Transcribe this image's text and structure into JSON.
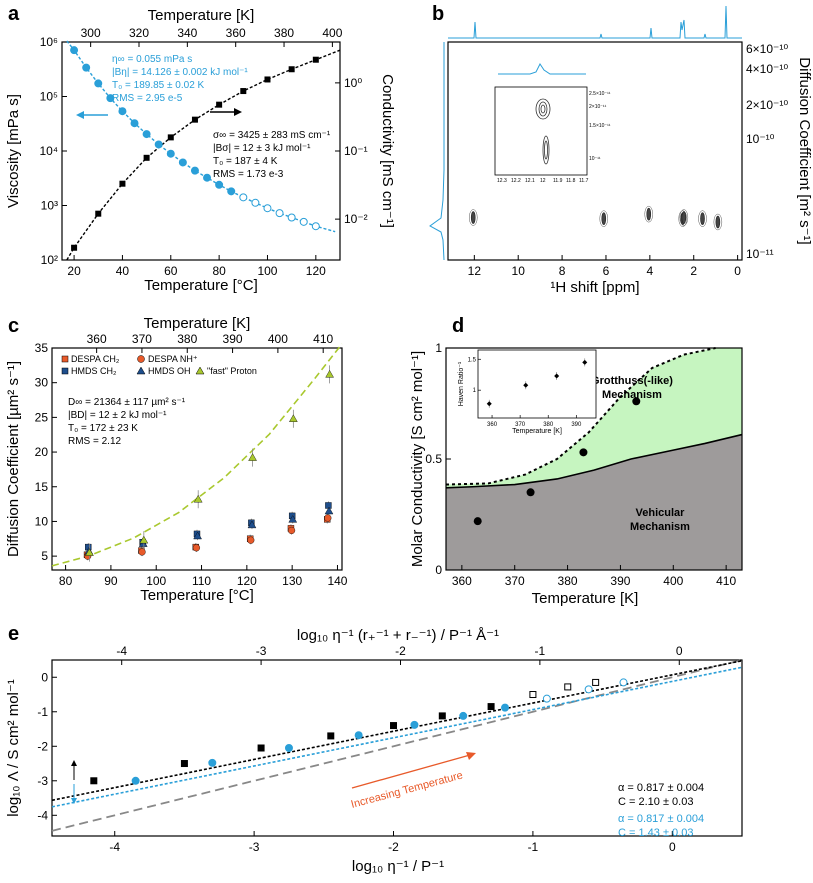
{
  "figure": {
    "labels": [
      "a",
      "b",
      "c",
      "d",
      "e"
    ]
  },
  "colors": {
    "blue": "#2a9fd8",
    "black": "#111111",
    "green_fill": "#c6f5c0",
    "gray_fill": "#9e9b9b",
    "orange": "#e85a2a",
    "navy": "#1e4e8c",
    "lime": "#a9c82e",
    "dash_gray": "#888888"
  },
  "chart_data": [
    {
      "id": "a",
      "type": "line",
      "xlabel": "Temperature [°C]",
      "x2label": "Temperature [K]",
      "ylabel": "Viscosity [mPa s]",
      "y2label": "Conductivity [mS cm⁻¹]",
      "xlim": [
        15,
        130
      ],
      "xticks": [
        20,
        40,
        60,
        80,
        100,
        120
      ],
      "x2ticks": [
        300,
        320,
        340,
        360,
        380,
        400
      ],
      "ylim_log": [
        2,
        6
      ],
      "yticks_text": [
        "10²",
        "10³",
        "10⁴",
        "10⁵",
        "10⁶"
      ],
      "y2lim_log": [
        -2.6,
        0.6
      ],
      "y2ticks_text": [
        "10⁻²",
        "10⁻¹",
        "10⁰"
      ],
      "viscosity": {
        "x": [
          20,
          25,
          30,
          35,
          40,
          45,
          50,
          55,
          60,
          65,
          70,
          75,
          80,
          85,
          90,
          95,
          100,
          105,
          110,
          115,
          120
        ],
        "log_y": [
          5.85,
          5.53,
          5.24,
          4.97,
          4.73,
          4.51,
          4.31,
          4.12,
          3.95,
          3.79,
          3.64,
          3.51,
          3.38,
          3.26,
          3.15,
          3.05,
          2.95,
          2.86,
          2.78,
          2.7,
          2.62
        ],
        "open_from": 90
      },
      "conductivity": {
        "x": [
          20,
          30,
          40,
          50,
          60,
          70,
          80,
          90,
          100,
          110,
          120
        ],
        "log_y": [
          -2.42,
          -1.92,
          -1.48,
          -1.1,
          -0.8,
          -0.54,
          -0.32,
          -0.12,
          0.05,
          0.2,
          0.34
        ]
      },
      "annot_blue": [
        "η∞ = 0.055 mPa s",
        "|Bη| = 14.126 ± 0.002 kJ mol⁻¹",
        "T₀ = 189.85 ± 0.02 K",
        "RMS = 2.95 e-5"
      ],
      "annot_black": [
        "σ∞ = 3425 ± 283 mS cm⁻¹",
        "|Bσ| = 12 ± 3 kJ mol⁻¹",
        "T₀ = 187 ± 4 K",
        "RMS = 1.73 e-3"
      ]
    },
    {
      "id": "b",
      "type": "scatter",
      "xlabel": "¹H shift [ppm]",
      "ylabel": "Diffusion Coefficient [m² s⁻¹]",
      "xlim": [
        13.2,
        -0.2
      ],
      "xticks": [
        12,
        10,
        8,
        6,
        4,
        2,
        0
      ],
      "yticks_text": [
        "6×10⁻¹⁰",
        "4×10⁻¹⁰",
        "2×10⁻¹⁰",
        "10⁻¹⁰",
        "10⁻¹¹"
      ],
      "ylog_range": [
        -11.15,
        -9.2
      ],
      "peaks": [
        {
          "ppm": 12.05,
          "log_d": -10.77
        },
        {
          "ppm": 6.1,
          "log_d": -10.78
        },
        {
          "ppm": 4.05,
          "log_d": -10.74
        },
        {
          "ppm": 2.5,
          "log_d": -10.78
        },
        {
          "ppm": 2.45,
          "log_d": -10.77
        },
        {
          "ppm": 1.6,
          "log_d": -10.78
        },
        {
          "ppm": 0.9,
          "log_d": -10.81
        }
      ],
      "inset": {
        "xticks": [
          "12.3",
          "12.2",
          "12.1",
          "12",
          "11.9",
          "11.8",
          "11.7"
        ],
        "yticks": [
          "2.5×10⁻¹¹",
          "2×10⁻¹¹",
          "1.5×10⁻¹¹",
          "10⁻¹¹"
        ]
      }
    },
    {
      "id": "c",
      "type": "scatter",
      "xlabel": "Temperature [°C]",
      "x2label": "Temperature [K]",
      "ylabel": "Diffusion Coefficient [µm² s⁻¹]",
      "xlim": [
        77,
        141
      ],
      "xticks": [
        80,
        90,
        100,
        110,
        120,
        130,
        140
      ],
      "x2ticks": [
        360,
        370,
        380,
        390,
        400,
        410
      ],
      "ylim": [
        3,
        35
      ],
      "yticks": [
        5,
        10,
        15,
        20,
        25,
        30,
        35
      ],
      "series": [
        {
          "name": "DESPA CH₂",
          "marker": "square",
          "color": "#e85a2a",
          "x": [
            85,
            97,
            109,
            121,
            130,
            138
          ],
          "y": [
            5.2,
            5.8,
            6.3,
            7.5,
            9.0,
            10.3
          ]
        },
        {
          "name": "DESPA NH⁺",
          "marker": "circle",
          "color": "#e85a2a",
          "x": [
            85,
            97,
            109,
            121,
            130,
            138
          ],
          "y": [
            5.0,
            5.6,
            6.2,
            7.3,
            8.7,
            10.5
          ]
        },
        {
          "name": "HMDS CH₂",
          "marker": "square",
          "color": "#1e4e8c",
          "x": [
            85,
            97,
            109,
            121,
            130,
            138
          ],
          "y": [
            6.3,
            7.0,
            8.2,
            9.8,
            10.8,
            12.3
          ]
        },
        {
          "name": "HMDS OH",
          "marker": "triangle",
          "color": "#1e4e8c",
          "x": [
            85,
            97,
            109,
            121,
            130,
            138
          ],
          "y": [
            5.7,
            6.8,
            7.9,
            9.5,
            10.3,
            11.5
          ]
        },
        {
          "name": "\"fast\" Proton",
          "marker": "triangle",
          "color": "#a9c82e",
          "x": [
            85,
            97,
            109,
            121,
            130,
            138
          ],
          "y": [
            5.5,
            7.3,
            13.2,
            19.2,
            24.8,
            31.2
          ]
        }
      ],
      "fit_x": [
        77,
        85,
        95,
        105,
        115,
        125,
        135,
        141
      ],
      "fit_y": [
        3.6,
        5.0,
        7.6,
        11.3,
        16.3,
        22.6,
        30.6,
        35.6
      ],
      "annot": [
        "D∞ = 21364 ± 117 µm² s⁻¹",
        "|BD| = 12 ± 2 kJ mol⁻¹",
        "T₀ = 172 ± 23 K",
        "RMS = 2.12"
      ]
    },
    {
      "id": "d",
      "type": "area",
      "xlabel": "Temperature [K]",
      "ylabel": "Molar Conductivity [S cm² mol⁻¹]",
      "xlim": [
        357,
        413
      ],
      "xticks": [
        360,
        370,
        380,
        390,
        400,
        410
      ],
      "ylim": [
        0,
        1
      ],
      "yticks": [
        0,
        0.5,
        1
      ],
      "ytick_text": [
        "0",
        "0.5",
        "1"
      ],
      "solid_x": [
        357,
        362,
        370,
        378,
        385,
        392,
        400,
        406,
        413
      ],
      "solid_y": [
        0.37,
        0.375,
        0.385,
        0.41,
        0.45,
        0.5,
        0.54,
        0.57,
        0.61
      ],
      "dashed_x": [
        357,
        365,
        372,
        378,
        384,
        390,
        396,
        402,
        408
      ],
      "dashed_y": [
        0.385,
        0.39,
        0.43,
        0.5,
        0.62,
        0.78,
        0.91,
        0.97,
        1.02
      ],
      "points_x": [
        363,
        373,
        383,
        393
      ],
      "points_y": [
        0.22,
        0.35,
        0.53,
        0.76
      ],
      "region_top": "Grotthuss(-like)\nMechanism",
      "region_bottom": "Vehicular\nMechanism",
      "inset": {
        "xlabel": "Temperature [K]",
        "ylabel": "Haven Ratio⁻¹",
        "xticks": [
          "360",
          "370",
          "380",
          "390"
        ],
        "yticks": [
          "1",
          "1.5"
        ],
        "x": [
          359,
          372,
          383,
          393
        ],
        "y": [
          0.78,
          1.08,
          1.23,
          1.45
        ]
      }
    },
    {
      "id": "e",
      "type": "line",
      "xlabel": "log₁₀ η⁻¹ / P⁻¹",
      "x2label": "log₁₀ η⁻¹ (r₊⁻¹ + r₋⁻¹) / P⁻¹ Å⁻¹",
      "ylabel": "log₁₀ Λ / S cm² mol⁻¹",
      "xlim": [
        -4.45,
        0.5
      ],
      "xticks": [
        -4,
        -3,
        -2,
        -1,
        0
      ],
      "x2ticks": [
        -4,
        -3,
        -2,
        -1,
        0
      ],
      "ylim": [
        -4.6,
        0.5
      ],
      "yticks": [
        -4,
        -3,
        -2,
        -1,
        0
      ],
      "black_pts": {
        "x": [
          -4.15,
          -3.5,
          -2.95,
          -2.45,
          -2.0,
          -1.65,
          -1.3,
          -1.0,
          -0.75,
          -0.55
        ],
        "y": [
          -3.0,
          -2.5,
          -2.05,
          -1.7,
          -1.4,
          -1.12,
          -0.85,
          -0.5,
          -0.28,
          -0.15
        ],
        "open_from": 7
      },
      "blue_pts": {
        "x": [
          -3.85,
          -3.3,
          -2.75,
          -2.25,
          -1.85,
          -1.5,
          -1.2,
          -0.9,
          -0.6,
          -0.35
        ],
        "y": [
          -3.0,
          -2.48,
          -2.05,
          -1.68,
          -1.38,
          -1.12,
          -0.88,
          -0.62,
          -0.35,
          -0.15
        ],
        "open_from": 7
      },
      "fit_black": {
        "slope": 0.817,
        "intercept": 0.07
      },
      "fit_blue": {
        "slope": 0.817,
        "intercept": -0.12
      },
      "ideal": {
        "slope": 1.0,
        "intercept": 0.0
      },
      "increasing_label": "Increasing Temperature",
      "annot_black": [
        "α = 0.817 ± 0.004",
        "C = 2.10 ± 0.03"
      ],
      "annot_blue": [
        "α = 0.817 ± 0.004",
        "C = 1.43 ± 0.03"
      ]
    }
  ]
}
